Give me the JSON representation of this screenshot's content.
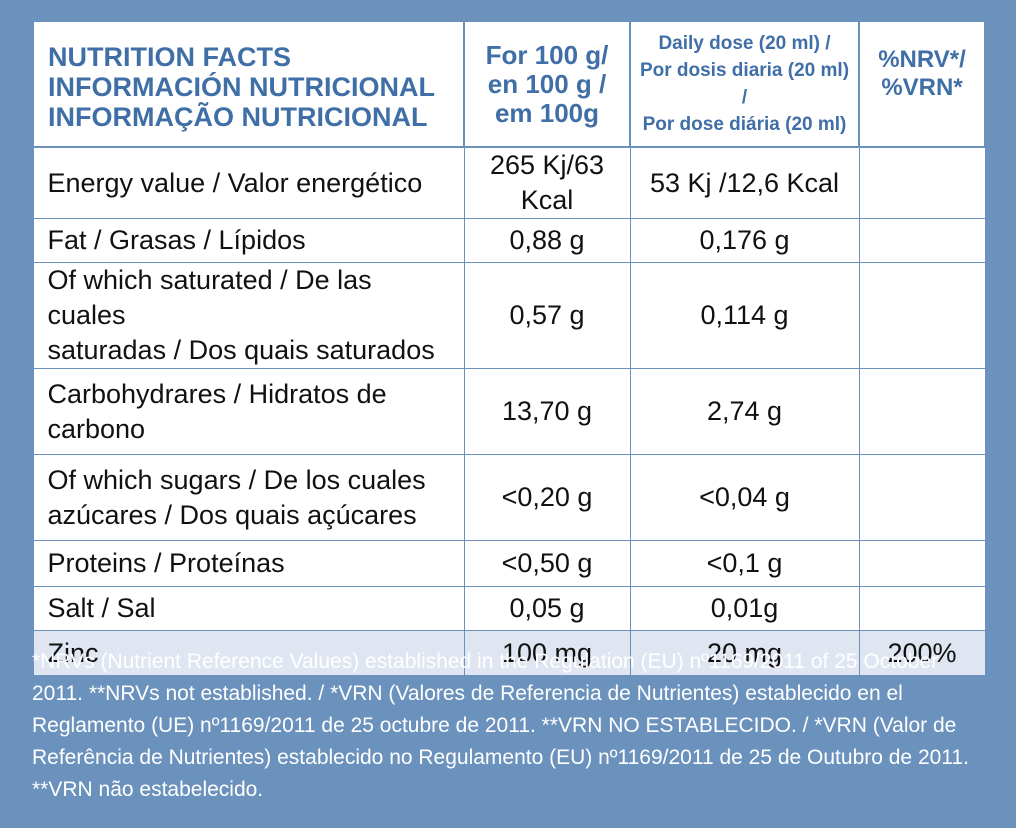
{
  "header": {
    "title_lines": [
      "NUTRITION FACTS",
      "INFORMACIÓN NUTRICIONAL",
      "INFORMAÇÃO NUTRICIONAL"
    ],
    "per100_lines": [
      "For 100 g/",
      "en 100 g /",
      "em 100g"
    ],
    "daily_lines": [
      "Daily dose (20 ml) /",
      "Por dosis diaria (20 ml) /",
      "Por dose diária (20 ml)"
    ],
    "nrv_lines": [
      "%NRV*/",
      "%VRN*"
    ]
  },
  "rows": [
    {
      "name_lines": [
        "Energy value / Valor energético"
      ],
      "per100": "265 Kj/63 Kcal",
      "daily": "53 Kj /12,6 Kcal",
      "nrv": ""
    },
    {
      "name_lines": [
        "Fat / Grasas / Lípidos"
      ],
      "per100": "0,88 g",
      "daily": "0,176 g",
      "nrv": ""
    },
    {
      "name_lines": [
        "Of which saturated / De las cuales",
        "saturadas / Dos quais saturados"
      ],
      "per100": "0,57 g",
      "daily": "0,114 g",
      "nrv": ""
    },
    {
      "name_lines": [
        "Carbohydrares / Hidratos de",
        "carbono"
      ],
      "per100": "13,70 g",
      "daily": "2,74 g",
      "nrv": ""
    },
    {
      "name_lines": [
        "Of which  sugars / De los cuales",
        "azúcares / Dos quais açúcares"
      ],
      "per100": "<0,20 g",
      "daily": "<0,04 g",
      "nrv": ""
    },
    {
      "name_lines": [
        "Proteins / Proteínas"
      ],
      "per100": "<0,50 g",
      "daily": "<0,1 g",
      "nrv": ""
    },
    {
      "name_lines": [
        "Salt / Sal"
      ],
      "per100": "0,05  g",
      "daily": "0,01g",
      "nrv": ""
    },
    {
      "name_lines": [
        "Zinc"
      ],
      "per100": "100 mg",
      "daily": "20 mg",
      "nrv": "200%"
    }
  ],
  "footnote": "*NRVs (Nutrient Reference Values) established in the Regulation (EU) nº1169/2011 of 25 October 2011. **NRVs not established. / *VRN (Valores de Referencia de Nutrientes) establecido en el Reglamento (UE) nº1169/2011 de 25 octubre de 2011. **VRN NO ESTABLECIDO. / *VRN (Valor de Referência de Nutrientes) establecido no Regulamento (EU) nº1169/2011 de 25 de Outubro de 2011. **VRN não estabelecido.",
  "colors": {
    "background": "#6b92bd",
    "header_text": "#3f6fa6",
    "zinc_row": "#dfe6f1"
  }
}
